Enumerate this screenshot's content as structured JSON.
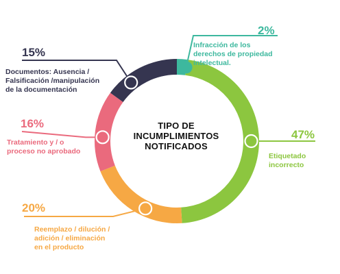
{
  "chart_data": {
    "type": "pie",
    "title_lines": [
      "TIPO DE",
      "INCUMPLIMIENTOS",
      "NOTIFICADOS"
    ],
    "slices": [
      {
        "value": 2,
        "pct_label": "2%",
        "label_lines": [
          "Infracción de los",
          "derechos de propiedad",
          "intelectual."
        ],
        "color": "#3db89e"
      },
      {
        "value": 47,
        "pct_label": "47%",
        "label_lines": [
          "Etiquetado",
          "incorrecto"
        ],
        "color": "#8cc63f"
      },
      {
        "value": 20,
        "pct_label": "20%",
        "label_lines": [
          "Reemplazo / dilución /",
          "adición / eliminación",
          "en el producto"
        ],
        "color": "#f6a844"
      },
      {
        "value": 16,
        "pct_label": "16%",
        "label_lines": [
          "Tratamiento y / o",
          "proceso no aprobado"
        ],
        "color": "#ea6a7d"
      },
      {
        "value": 15,
        "pct_label": "15%",
        "label_lines": [
          "Documentos: Ausencia /",
          "Falsificación /manipulación",
          "de la documentación"
        ],
        "color": "#353550"
      }
    ]
  }
}
